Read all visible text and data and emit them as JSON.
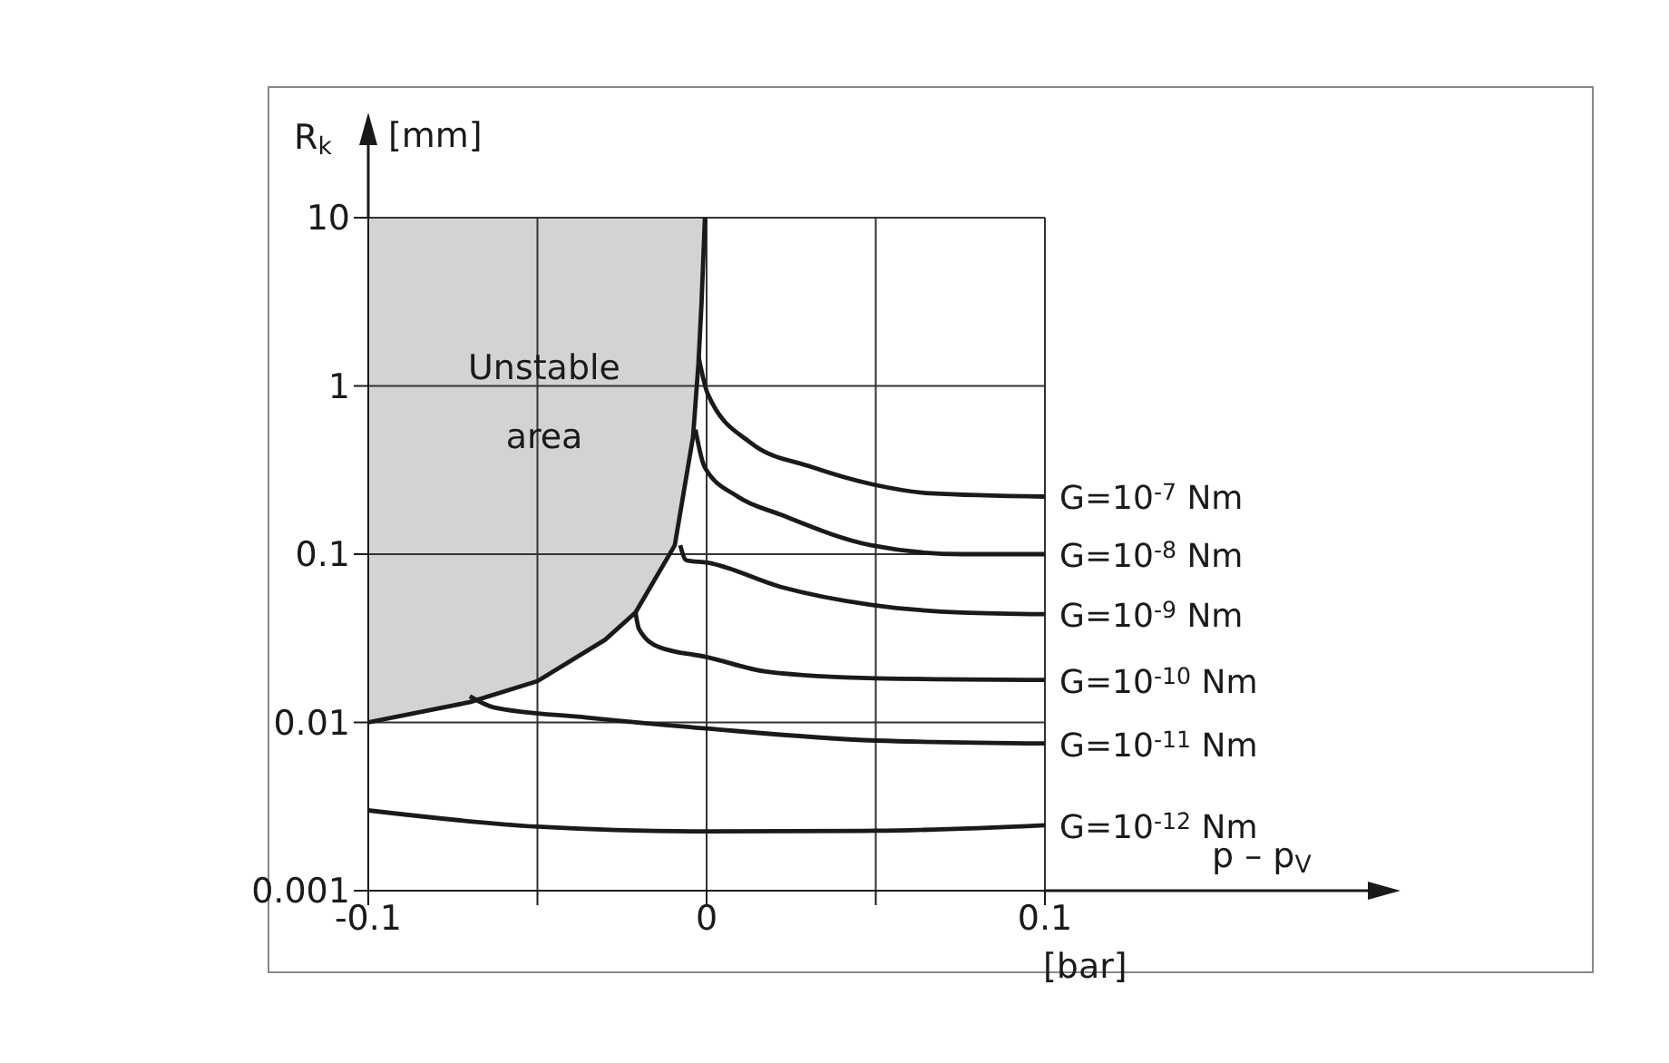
{
  "chart_data": {
    "type": "line",
    "xlabel": "p – p$_{V}$",
    "ylabel": "R$_{k}$",
    "annotations": [
      "Unstable area",
      "[mm]",
      "[bar]"
    ],
    "log": "y",
    "grid": true,
    "xlim": [
      -0.1,
      0.1
    ],
    "xticks": [
      -0.1,
      {
        "value": -0.05,
        "label": null
      },
      0,
      {
        "value": 0.05,
        "label": null
      },
      0.1
    ],
    "ylim": [
      0.001,
      10
    ],
    "yticks": [
      0.001,
      0.01,
      0.1,
      1,
      10
    ],
    "series": [
      {
        "color": "#1a1a1a",
        "x": [
          -0.1,
          -0.07,
          -0.05,
          -0.03,
          -0.021,
          -0.0094,
          -0.004,
          -0.0024,
          -0.0015,
          -0.0005
        ],
        "values": [
          0.01,
          0.0132,
          0.0176,
          0.031,
          0.045,
          0.113,
          0.5,
          1.37,
          3.1,
          10
        ]
      },
      {
        "name": "G=10$^{-7}$ Nm",
        "color": "#1a1a1a",
        "x": [
          -0.0024,
          0.0003,
          0.013,
          0.031,
          0.049,
          0.066,
          0.1
        ],
        "values": [
          1.5,
          0.9,
          0.46,
          0.33,
          0.26,
          0.23,
          0.22
        ]
      },
      {
        "name": "G=10$^{-8}$ Nm",
        "color": "#1a1a1a",
        "x": [
          -0.0033,
          -0.0006,
          0.0092,
          0.0218,
          0.0486,
          0.0755,
          0.1
        ],
        "values": [
          0.55,
          0.33,
          0.22,
          0.172,
          0.113,
          0.1,
          0.1
        ]
      },
      {
        "name": "G=10$^{-9}$ Nm",
        "color": "#1a1a1a",
        "x": [
          -0.0078,
          -0.006,
          0.0003,
          0.0218,
          0.0486,
          0.0755,
          0.1
        ],
        "values": [
          0.113,
          0.092,
          0.089,
          0.064,
          0.05,
          0.045,
          0.044
        ]
      },
      {
        "name": "G=10$^{-10}$ Nm",
        "color": "#1a1a1a",
        "x": [
          -0.021,
          -0.02,
          -0.014,
          0,
          0.018,
          0.05,
          0.1
        ],
        "values": [
          0.045,
          0.036,
          0.028,
          0.0245,
          0.02,
          0.0183,
          0.0179
        ]
      },
      {
        "name": "G=10$^{-11}$ Nm",
        "color": "#1a1a1a",
        "x": [
          -0.07,
          -0.063,
          -0.0355,
          0,
          0.05,
          0.1
        ],
        "values": [
          0.0143,
          0.0123,
          0.0107,
          0.0092,
          0.0078,
          0.0075
        ]
      },
      {
        "name": "G=10$^{-12}$ Nm",
        "color": "#1a1a1a",
        "x": [
          -0.1,
          -0.05,
          0,
          0.05,
          0.1
        ],
        "values": [
          0.003,
          0.0024,
          0.00225,
          0.00227,
          0.00245
        ]
      }
    ]
  }
}
